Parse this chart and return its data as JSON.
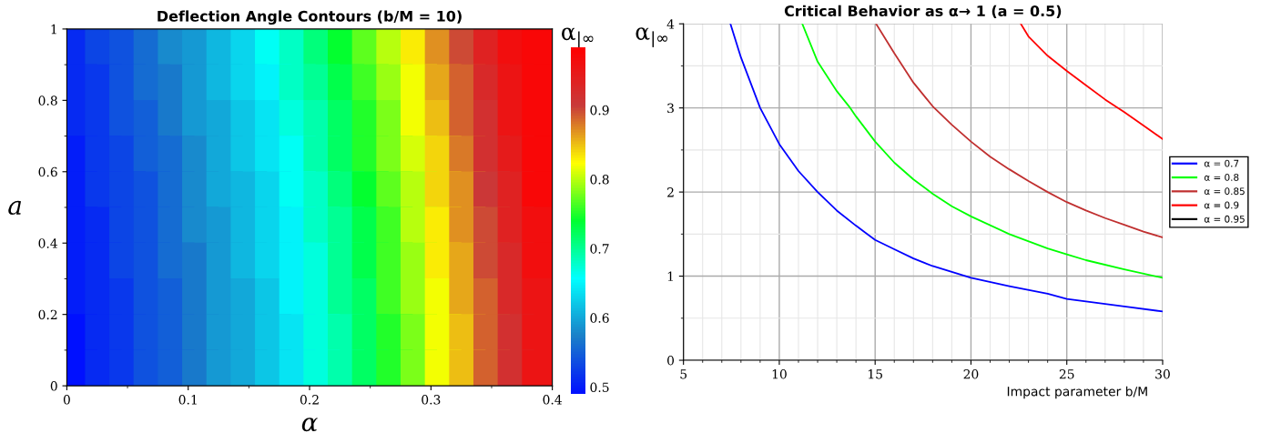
{
  "chart_data": [
    {
      "type": "scatter",
      "title": "Deflection Angle Contours (b/M = 10)",
      "xlabel": "α",
      "ylabel": "a",
      "clabel": "α$_{|∞}$",
      "marker": "square",
      "xlim": [
        0,
        0.4
      ],
      "xticks": [
        0,
        0.1,
        0.2,
        0.3,
        0.4
      ],
      "ylim": [
        0,
        1
      ],
      "yticks": [
        0,
        0.2,
        0.4,
        0.6,
        0.8,
        1
      ],
      "clim": [
        0.49,
        0.99
      ],
      "cticks": [
        0.5,
        0.6,
        0.7,
        0.8,
        0.9
      ],
      "x": [
        0.01,
        0.03,
        0.05,
        0.07,
        0.09,
        0.11,
        0.13,
        0.15,
        0.17,
        0.19,
        0.21,
        0.23,
        0.25,
        0.27,
        0.29,
        0.31,
        0.33,
        0.35,
        0.37,
        0.39,
        0.01,
        0.03,
        0.05,
        0.07,
        0.09,
        0.11,
        0.13,
        0.15,
        0.17,
        0.19,
        0.21,
        0.23,
        0.25,
        0.27,
        0.29,
        0.31,
        0.33,
        0.35,
        0.37,
        0.39,
        0.01,
        0.03,
        0.05,
        0.07,
        0.09,
        0.11,
        0.13,
        0.15,
        0.17,
        0.19,
        0.21,
        0.23,
        0.25,
        0.27,
        0.29,
        0.31,
        0.33,
        0.35,
        0.37,
        0.39,
        0.01,
        0.03,
        0.05,
        0.07,
        0.09,
        0.11,
        0.13,
        0.15,
        0.17,
        0.19,
        0.21,
        0.23,
        0.25,
        0.27,
        0.29,
        0.31,
        0.33,
        0.35,
        0.37,
        0.39,
        0.01,
        0.03,
        0.05,
        0.07,
        0.09,
        0.11,
        0.13,
        0.15,
        0.17,
        0.19,
        0.21,
        0.23,
        0.25,
        0.27,
        0.29,
        0.31,
        0.33,
        0.35,
        0.37,
        0.39,
        0.01,
        0.03,
        0.05,
        0.07,
        0.09,
        0.11,
        0.13,
        0.15,
        0.17,
        0.19,
        0.21,
        0.23,
        0.25,
        0.27,
        0.29,
        0.31,
        0.33,
        0.35,
        0.37,
        0.39,
        0.01,
        0.03,
        0.05,
        0.07,
        0.09,
        0.11,
        0.13,
        0.15,
        0.17,
        0.19,
        0.21,
        0.23,
        0.25,
        0.27,
        0.29,
        0.31,
        0.33,
        0.35,
        0.37,
        0.39,
        0.01,
        0.03,
        0.05,
        0.07,
        0.09,
        0.11,
        0.13,
        0.15,
        0.17,
        0.19,
        0.21,
        0.23,
        0.25,
        0.27,
        0.29,
        0.31,
        0.33,
        0.35,
        0.37,
        0.39,
        0.01,
        0.03,
        0.05,
        0.07,
        0.09,
        0.11,
        0.13,
        0.15,
        0.17,
        0.19,
        0.21,
        0.23,
        0.25,
        0.27,
        0.29,
        0.31,
        0.33,
        0.35,
        0.37,
        0.39,
        0.01,
        0.03,
        0.05,
        0.07,
        0.09,
        0.11,
        0.13,
        0.15,
        0.17,
        0.19,
        0.21,
        0.23,
        0.25,
        0.27,
        0.29,
        0.31,
        0.33,
        0.35,
        0.37,
        0.39
      ],
      "values": [
        0.95,
        0.95,
        0.95,
        0.95,
        0.95,
        0.95,
        0.95,
        0.95,
        0.95,
        0.95,
        0.95,
        0.95,
        0.95,
        0.95,
        0.95,
        0.95,
        0.95,
        0.95,
        0.95,
        0.95,
        0.85,
        0.85,
        0.85,
        0.85,
        0.85,
        0.85,
        0.85,
        0.85,
        0.85,
        0.85,
        0.85,
        0.85,
        0.85,
        0.85,
        0.85,
        0.85,
        0.85,
        0.85,
        0.85,
        0.85,
        0.75,
        0.75,
        0.75,
        0.75,
        0.75,
        0.75,
        0.75,
        0.75,
        0.75,
        0.75,
        0.75,
        0.75,
        0.75,
        0.75,
        0.75,
        0.75,
        0.75,
        0.75,
        0.75,
        0.75,
        0.65,
        0.65,
        0.65,
        0.65,
        0.65,
        0.65,
        0.65,
        0.65,
        0.65,
        0.65,
        0.65,
        0.65,
        0.65,
        0.65,
        0.65,
        0.65,
        0.65,
        0.65,
        0.65,
        0.65,
        0.55,
        0.55,
        0.55,
        0.55,
        0.55,
        0.55,
        0.55,
        0.55,
        0.55,
        0.55,
        0.55,
        0.55,
        0.55,
        0.55,
        0.55,
        0.55,
        0.55,
        0.55,
        0.55,
        0.55,
        0.45,
        0.45,
        0.45,
        0.45,
        0.45,
        0.45,
        0.45,
        0.45,
        0.45,
        0.45,
        0.45,
        0.45,
        0.45,
        0.45,
        0.45,
        0.45,
        0.45,
        0.45,
        0.45,
        0.45,
        0.35,
        0.35,
        0.35,
        0.35,
        0.35,
        0.35,
        0.35,
        0.35,
        0.35,
        0.35,
        0.35,
        0.35,
        0.35,
        0.35,
        0.35,
        0.35,
        0.35,
        0.35,
        0.35,
        0.35,
        0.25,
        0.25,
        0.25,
        0.25,
        0.25,
        0.25,
        0.25,
        0.25,
        0.25,
        0.25,
        0.25,
        0.25,
        0.25,
        0.25,
        0.25,
        0.25,
        0.25,
        0.25,
        0.25,
        0.25,
        0.15,
        0.15,
        0.15,
        0.15,
        0.15,
        0.15,
        0.15,
        0.15,
        0.15,
        0.15,
        0.15,
        0.15,
        0.15,
        0.15,
        0.15,
        0.15,
        0.15,
        0.15,
        0.15,
        0.15,
        0.05,
        0.05,
        0.05,
        0.05,
        0.05,
        0.05,
        0.05,
        0.05,
        0.05,
        0.05,
        0.05,
        0.05,
        0.05,
        0.05,
        0.05,
        0.05,
        0.05,
        0.05,
        0.05,
        0.05
      ],
      "cvalues": [
        0.51,
        0.53,
        0.54,
        0.56,
        0.58,
        0.59,
        0.61,
        0.63,
        0.66,
        0.68,
        0.71,
        0.74,
        0.77,
        0.8,
        0.83,
        0.87,
        0.9,
        0.94,
        0.97,
        0.98,
        0.51,
        0.52,
        0.54,
        0.56,
        0.57,
        0.59,
        0.61,
        0.63,
        0.65,
        0.68,
        0.7,
        0.73,
        0.76,
        0.79,
        0.82,
        0.86,
        0.89,
        0.93,
        0.96,
        0.98,
        0.51,
        0.52,
        0.54,
        0.55,
        0.57,
        0.59,
        0.6,
        0.62,
        0.64,
        0.67,
        0.69,
        0.72,
        0.75,
        0.78,
        0.82,
        0.85,
        0.89,
        0.92,
        0.96,
        0.98,
        0.5,
        0.52,
        0.53,
        0.55,
        0.56,
        0.58,
        0.6,
        0.62,
        0.64,
        0.66,
        0.69,
        0.72,
        0.75,
        0.78,
        0.81,
        0.84,
        0.88,
        0.92,
        0.95,
        0.98,
        0.5,
        0.52,
        0.53,
        0.54,
        0.56,
        0.58,
        0.6,
        0.61,
        0.63,
        0.66,
        0.68,
        0.71,
        0.74,
        0.77,
        0.8,
        0.84,
        0.87,
        0.91,
        0.94,
        0.98,
        0.5,
        0.51,
        0.53,
        0.54,
        0.56,
        0.58,
        0.59,
        0.61,
        0.63,
        0.65,
        0.68,
        0.7,
        0.73,
        0.76,
        0.8,
        0.83,
        0.87,
        0.9,
        0.94,
        0.97,
        0.5,
        0.51,
        0.53,
        0.54,
        0.56,
        0.57,
        0.59,
        0.61,
        0.63,
        0.65,
        0.67,
        0.7,
        0.73,
        0.76,
        0.79,
        0.83,
        0.86,
        0.9,
        0.93,
        0.97,
        0.5,
        0.51,
        0.52,
        0.54,
        0.55,
        0.57,
        0.59,
        0.6,
        0.62,
        0.65,
        0.67,
        0.7,
        0.72,
        0.76,
        0.79,
        0.82,
        0.86,
        0.89,
        0.93,
        0.96,
        0.49,
        0.51,
        0.52,
        0.54,
        0.55,
        0.57,
        0.59,
        0.6,
        0.62,
        0.64,
        0.67,
        0.69,
        0.72,
        0.75,
        0.78,
        0.82,
        0.85,
        0.89,
        0.92,
        0.96,
        0.49,
        0.51,
        0.52,
        0.54,
        0.55,
        0.57,
        0.59,
        0.6,
        0.62,
        0.64,
        0.67,
        0.69,
        0.72,
        0.75,
        0.78,
        0.82,
        0.85,
        0.89,
        0.92,
        0.96
      ]
    },
    {
      "type": "line",
      "title": "Critical Behavior as α→ 1 (a = 0.5)",
      "xlabel": "Impact parameter b/M",
      "ylabel": "α$_{|∞}$",
      "xlim": [
        5,
        30
      ],
      "xticks": [
        5,
        10,
        15,
        20,
        25,
        30
      ],
      "ylim": [
        0,
        4
      ],
      "yticks": [
        0,
        1,
        2,
        3,
        4
      ],
      "grid": true,
      "legend": "right",
      "marker": "none",
      "line_style": "solid",
      "series": [
        {
          "name": "α = 0.7",
          "color": "#0000ff",
          "x": [
            7.45,
            8,
            9,
            10,
            11,
            12,
            13,
            14,
            15,
            16,
            17,
            18,
            19,
            20,
            22,
            24,
            25,
            26,
            28,
            30
          ],
          "values": [
            4,
            3.6,
            3.0,
            2.57,
            2.25,
            2.0,
            1.78,
            1.6,
            1.43,
            1.32,
            1.21,
            1.12,
            1.05,
            0.98,
            0.88,
            0.79,
            0.73,
            0.7,
            0.64,
            0.58
          ]
        },
        {
          "name": "α = 0.8",
          "color": "#00ff00",
          "x": [
            11.2,
            12,
            13,
            13.7,
            14,
            15,
            16,
            17,
            18,
            19,
            20,
            22,
            24,
            25,
            26,
            28,
            30
          ],
          "values": [
            4,
            3.55,
            3.2,
            3.0,
            2.9,
            2.6,
            2.35,
            2.15,
            1.98,
            1.83,
            1.71,
            1.5,
            1.33,
            1.26,
            1.19,
            1.08,
            0.98
          ]
        },
        {
          "name": "α = 0.85",
          "color": "#c03030",
          "x": [
            15.05,
            16,
            17,
            18,
            19,
            20,
            21,
            22,
            23,
            24,
            25,
            26,
            27,
            28,
            29,
            30
          ],
          "values": [
            4,
            3.65,
            3.3,
            3.02,
            2.8,
            2.6,
            2.42,
            2.27,
            2.13,
            2.0,
            1.88,
            1.78,
            1.69,
            1.61,
            1.53,
            1.46
          ]
        },
        {
          "name": "α = 0.9",
          "color": "#ff0000",
          "x": [
            22.6,
            23,
            24,
            25,
            26,
            27,
            28,
            29,
            30
          ],
          "values": [
            4,
            3.85,
            3.62,
            3.44,
            3.27,
            3.1,
            2.95,
            2.79,
            2.63
          ]
        },
        {
          "name": "α = 0.95",
          "color": "#000000"
        }
      ]
    }
  ]
}
